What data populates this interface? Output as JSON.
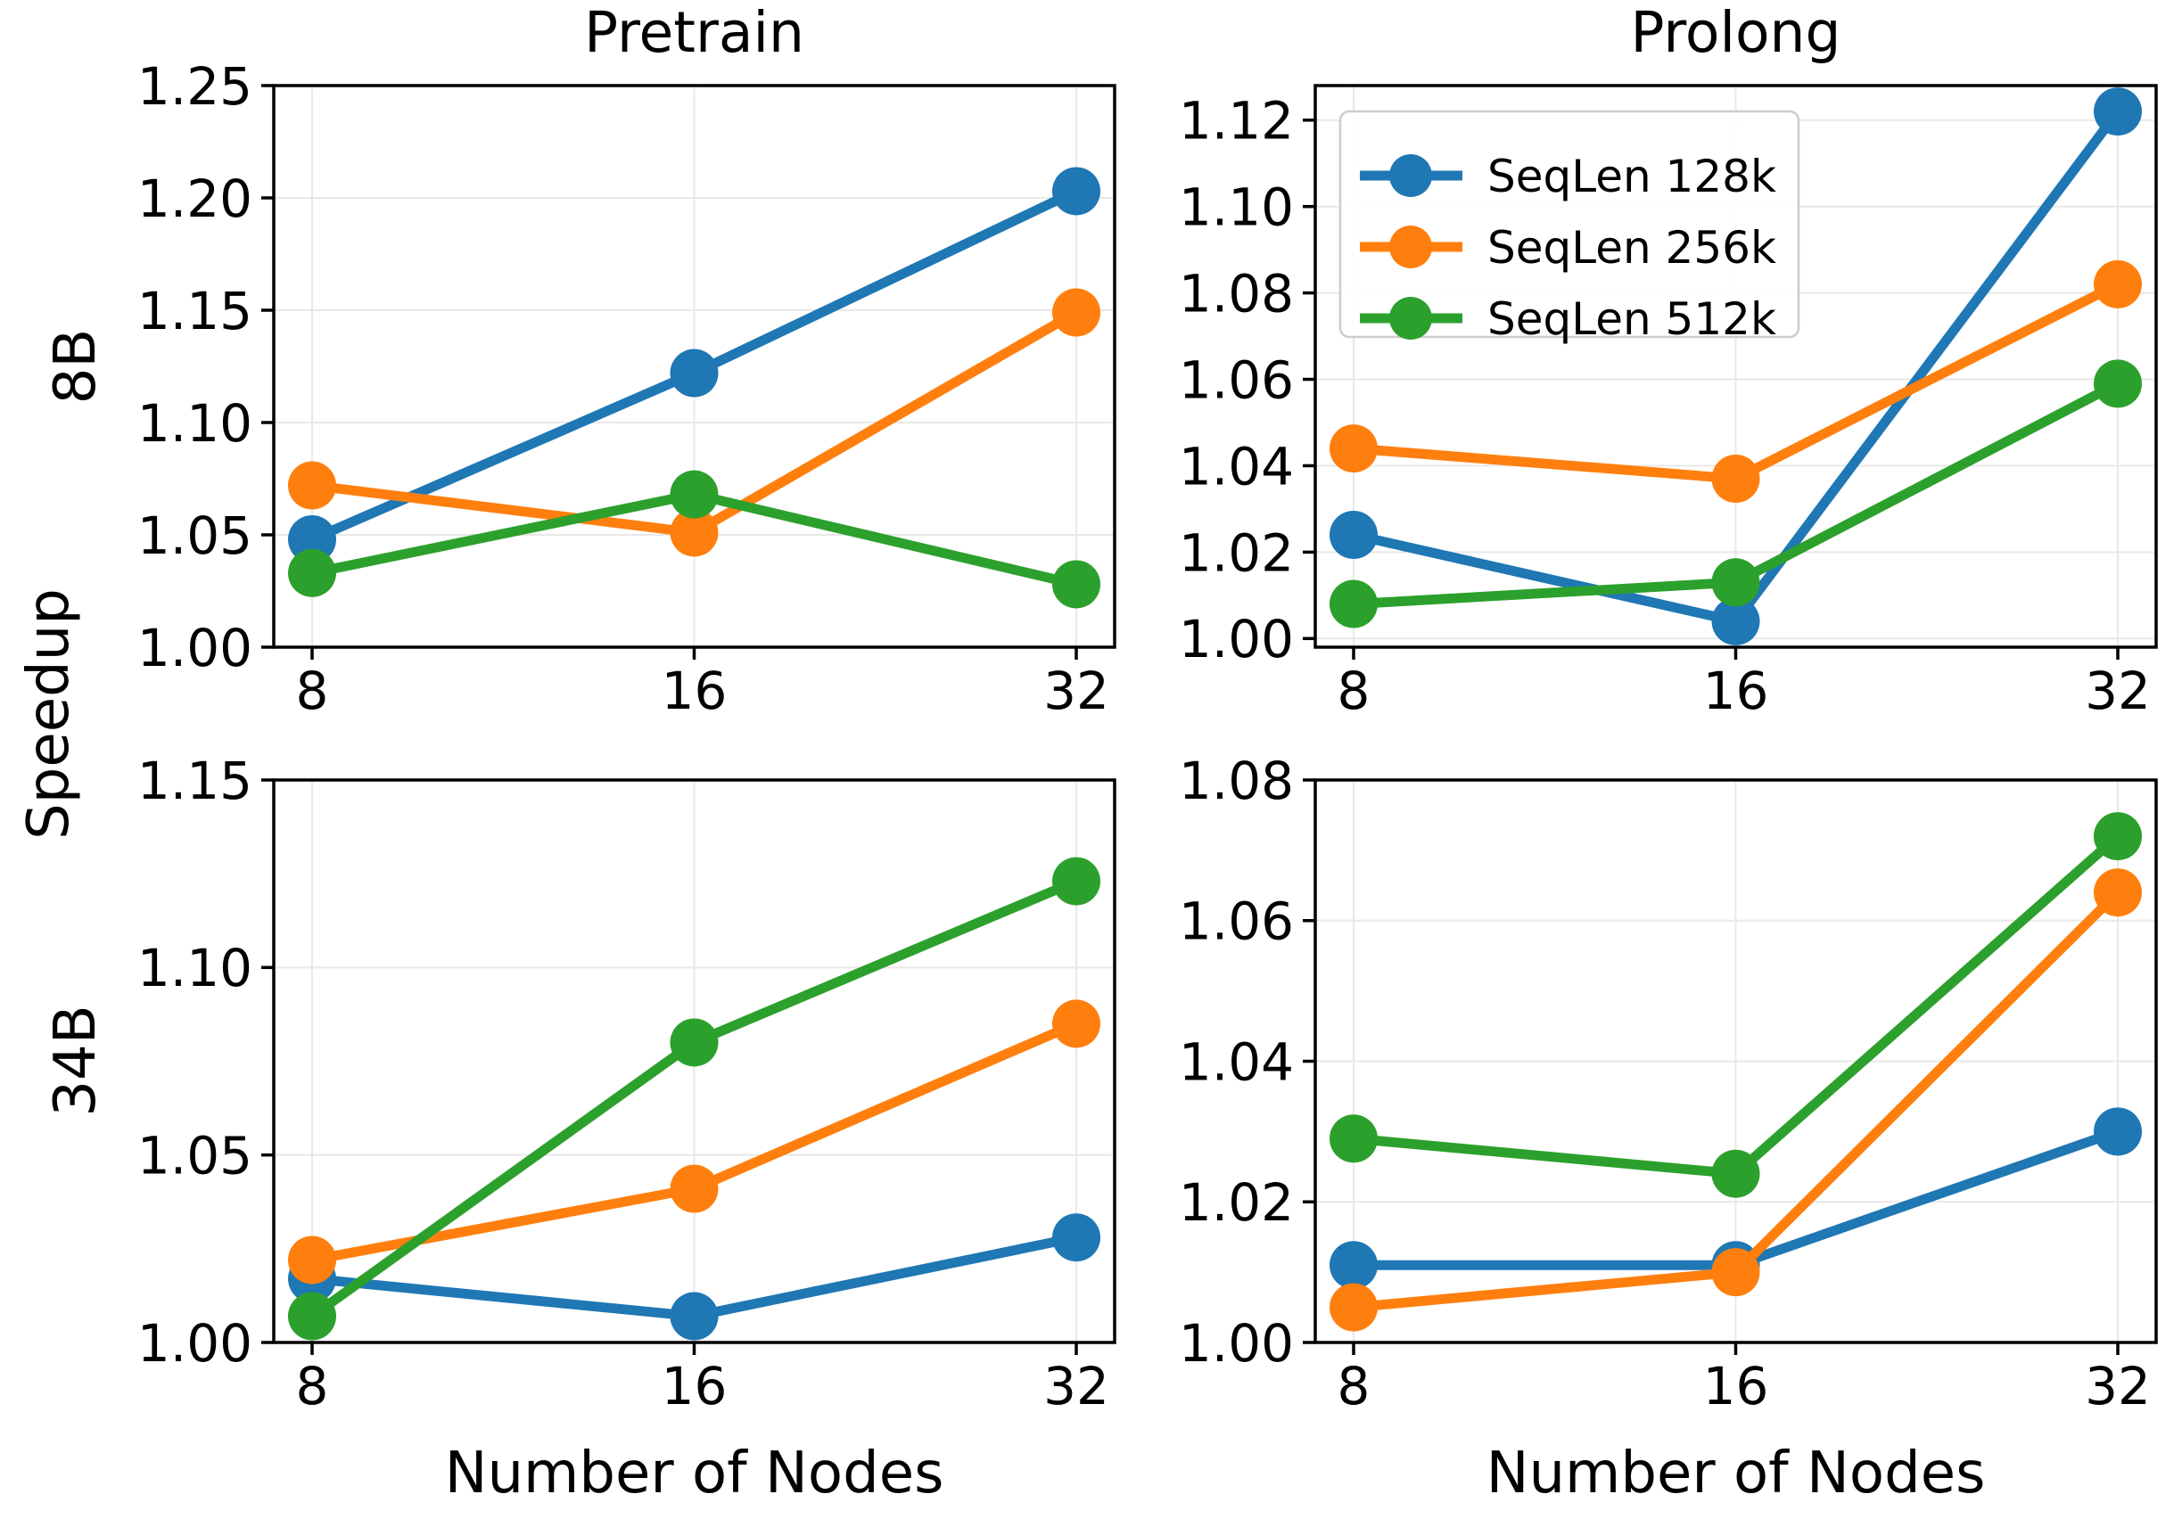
{
  "figure": {
    "ylabel": "Speedup",
    "xlabel": "Number of Nodes",
    "col_titles": [
      "Pretrain",
      "Prolong"
    ],
    "row_labels": [
      "8B",
      "34B"
    ]
  },
  "legend": {
    "location": "upper left of top-right subplot",
    "items": [
      {
        "label": "SeqLen 128k",
        "color": "#1f77b4"
      },
      {
        "label": "SeqLen 256k",
        "color": "#ff7f0e"
      },
      {
        "label": "SeqLen 512k",
        "color": "#2ca02c"
      }
    ]
  },
  "chart_data": [
    {
      "type": "line",
      "title": "Pretrain",
      "row_label": "8B",
      "x": [
        8,
        16,
        32
      ],
      "xticks": [
        "8",
        "16",
        "32"
      ],
      "series": [
        {
          "name": "SeqLen 128k",
          "color": "#1f77b4",
          "values": [
            1.048,
            1.122,
            1.203
          ]
        },
        {
          "name": "SeqLen 256k",
          "color": "#ff7f0e",
          "values": [
            1.072,
            1.051,
            1.149
          ]
        },
        {
          "name": "SeqLen 512k",
          "color": "#2ca02c",
          "values": [
            1.033,
            1.068,
            1.028
          ]
        }
      ],
      "ylim": [
        1.0,
        1.25
      ],
      "yticks": [
        1.0,
        1.05,
        1.1,
        1.15,
        1.2,
        1.25
      ],
      "grid": true,
      "legend": false
    },
    {
      "type": "line",
      "title": "Prolong",
      "row_label": "8B",
      "x": [
        8,
        16,
        32
      ],
      "xticks": [
        "8",
        "16",
        "32"
      ],
      "series": [
        {
          "name": "SeqLen 128k",
          "color": "#1f77b4",
          "values": [
            1.024,
            1.004,
            1.122
          ]
        },
        {
          "name": "SeqLen 256k",
          "color": "#ff7f0e",
          "values": [
            1.044,
            1.037,
            1.082
          ]
        },
        {
          "name": "SeqLen 512k",
          "color": "#2ca02c",
          "values": [
            1.008,
            1.013,
            1.059
          ]
        }
      ],
      "ylim": [
        0.998,
        1.128
      ],
      "yticks": [
        1.0,
        1.02,
        1.04,
        1.06,
        1.08,
        1.1,
        1.12
      ],
      "grid": true,
      "legend": true
    },
    {
      "type": "line",
      "title": "",
      "row_label": "34B",
      "x": [
        8,
        16,
        32
      ],
      "xticks": [
        "8",
        "16",
        "32"
      ],
      "series": [
        {
          "name": "SeqLen 128k",
          "color": "#1f77b4",
          "values": [
            1.017,
            1.007,
            1.028
          ]
        },
        {
          "name": "SeqLen 256k",
          "color": "#ff7f0e",
          "values": [
            1.022,
            1.041,
            1.085
          ]
        },
        {
          "name": "SeqLen 512k",
          "color": "#2ca02c",
          "values": [
            1.007,
            1.08,
            1.123
          ]
        }
      ],
      "ylim": [
        1.0,
        1.15
      ],
      "yticks": [
        1.0,
        1.05,
        1.1,
        1.15
      ],
      "grid": true,
      "legend": false
    },
    {
      "type": "line",
      "title": "",
      "row_label": "34B",
      "x": [
        8,
        16,
        32
      ],
      "xticks": [
        "8",
        "16",
        "32"
      ],
      "series": [
        {
          "name": "SeqLen 128k",
          "color": "#1f77b4",
          "values": [
            1.011,
            1.011,
            1.03
          ]
        },
        {
          "name": "SeqLen 256k",
          "color": "#ff7f0e",
          "values": [
            1.005,
            1.01,
            1.064
          ]
        },
        {
          "name": "SeqLen 512k",
          "color": "#2ca02c",
          "values": [
            1.029,
            1.024,
            1.072
          ]
        }
      ],
      "ylim": [
        1.0,
        1.08
      ],
      "yticks": [
        1.0,
        1.02,
        1.04,
        1.06,
        1.08
      ],
      "grid": true,
      "legend": false
    }
  ]
}
